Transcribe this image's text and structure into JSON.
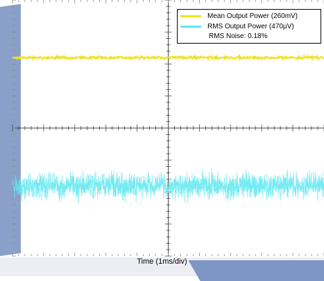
{
  "chart_data": {
    "type": "line",
    "xlabel": "Time (1ms/div)",
    "ylabel": "",
    "title": "",
    "x_divisions": 10,
    "y_divisions": 8,
    "grid": "center-crosshair-with-ticks",
    "series": [
      {
        "name": "Mean Output Power (260mV)",
        "color": "#f2e21c",
        "level_div": 6.2,
        "noise_div": 0.06
      },
      {
        "name": "RMS Output Power (470µV)",
        "color": "#5fe6f0",
        "level_div": 2.2,
        "noise_div": 0.6
      }
    ],
    "annotation": "RMS Noise: 0.18%",
    "legend_position": "top-right"
  },
  "colors": {
    "axis": "#444444",
    "tick": "#888888",
    "background_shape": "#8aa0c8"
  }
}
